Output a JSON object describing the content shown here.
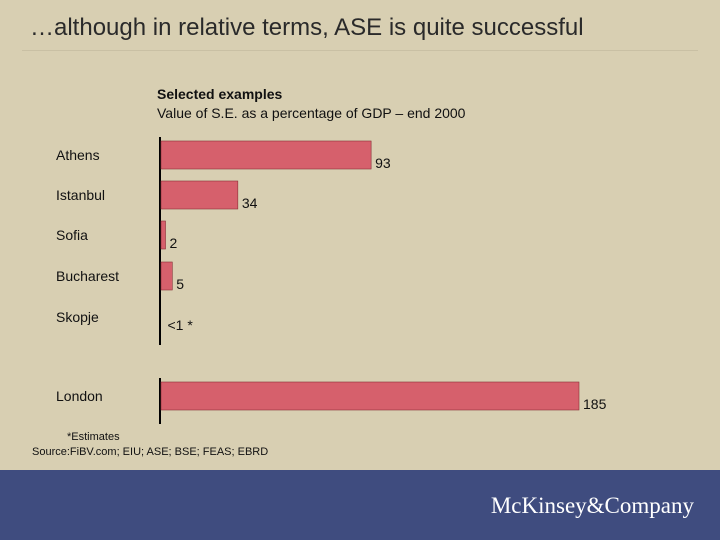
{
  "slide": {
    "title": "…although in relative terms, ASE is quite successful",
    "footnote": "*Estimates",
    "source": "Source:FiBV.com; EIU; ASE; BSE; FEAS; EBRD",
    "brand": "McKinsey&Company"
  },
  "colors": {
    "background": "#D8CFB2",
    "bar": "#D6606C",
    "bar_border": "#8A2F37",
    "footer": "#3F4C7F"
  },
  "chart_data": {
    "type": "bar",
    "orientation": "horizontal",
    "title": "Selected examples",
    "subtitle": "Value of S.E. as a percentage of GDP – end 2000",
    "categories": [
      "Athens",
      "Istanbul",
      "Sofia",
      "Bucharest",
      "Skopje",
      "London"
    ],
    "values": [
      93,
      34,
      2,
      5,
      0,
      185
    ],
    "labels": [
      "93",
      "34",
      "2",
      "5",
      "<1 *",
      "185"
    ],
    "groups": [
      [
        "Athens",
        "Istanbul",
        "Sofia",
        "Bucharest",
        "Skopje"
      ],
      [
        "London"
      ]
    ],
    "xlim": [
      0,
      185
    ],
    "grid": false
  }
}
